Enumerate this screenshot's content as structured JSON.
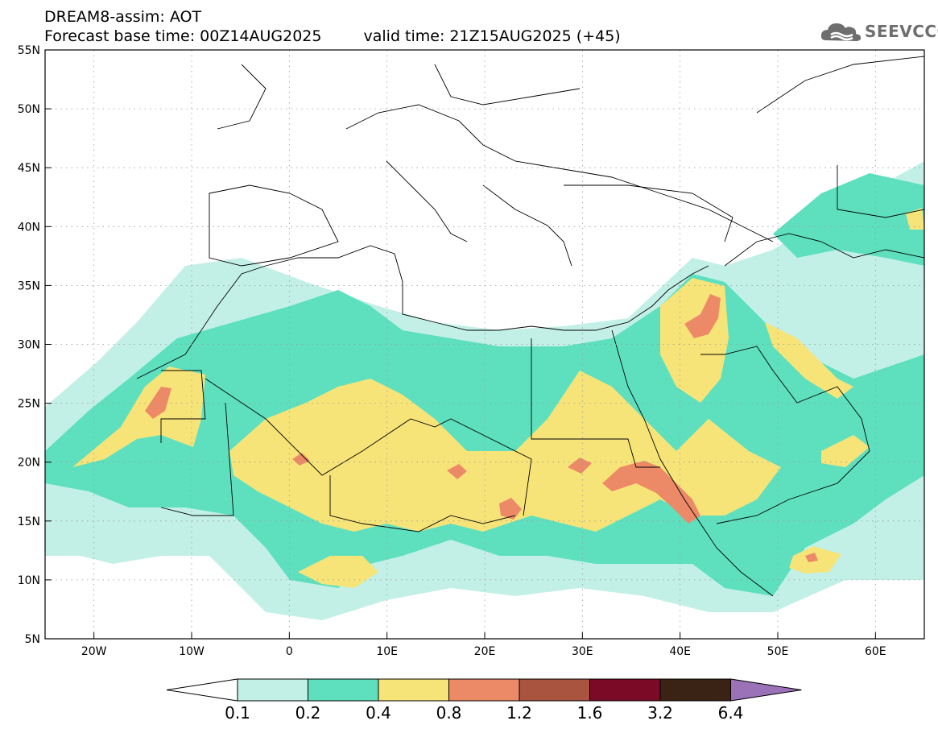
{
  "title": {
    "line1": "DREAM8-assim: AOT",
    "base_time": "Forecast base time: 00Z14AUG2025",
    "valid_time": "valid time: 21Z15AUG2025 (+45)"
  },
  "logo": {
    "text": "SEEVCCC",
    "icon": "cloud-icon",
    "color": "#6e6e6e"
  },
  "map": {
    "lon_range": [
      -25,
      65
    ],
    "lat_range": [
      5,
      55
    ],
    "lon_ticks": [
      "20W",
      "10W",
      "0",
      "10E",
      "20E",
      "30E",
      "40E",
      "50E",
      "60E"
    ],
    "lon_tick_values": [
      -20,
      -10,
      0,
      10,
      20,
      30,
      40,
      50,
      60
    ],
    "lat_ticks": [
      "5N",
      "10N",
      "15N",
      "20N",
      "25N",
      "30N",
      "35N",
      "40N",
      "45N",
      "50N",
      "55N"
    ],
    "lat_tick_values": [
      5,
      10,
      15,
      20,
      25,
      30,
      35,
      40,
      45,
      50,
      55
    ],
    "grid": "dotted"
  },
  "colorbar": {
    "labels": [
      "0.1",
      "0.2",
      "0.4",
      "0.8",
      "1.2",
      "1.6",
      "3.2",
      "6.4"
    ],
    "colors": [
      "#c2f0e6",
      "#5ee0bf",
      "#f7e479",
      "#ec8a68",
      "#a9543f",
      "#7b0a26",
      "#3a2214",
      "#9b72b8"
    ],
    "extend": "both"
  }
}
